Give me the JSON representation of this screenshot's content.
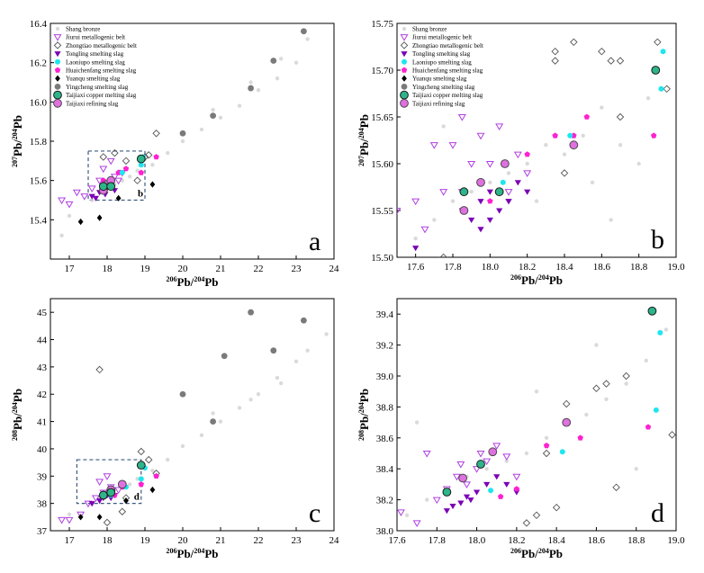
{
  "colors": {
    "bronze": "#d4d4d4",
    "jiurui": "#b040e0",
    "zhongtiao": "#555555",
    "tongling": "#7b00b5",
    "laoniupo": "#1ee6ee",
    "huaichenfang": "#ff20d0",
    "yuanqu": "#000000",
    "yingcheng": "#7a7a7a",
    "taijiaxi_copper": "#2db48a",
    "taijiaxi_refining": "#e070e0",
    "inset_box": "#3d5a80"
  },
  "legend": [
    {
      "key": "bronze",
      "label": "Shang bronze",
      "marker": "circle-filled"
    },
    {
      "key": "jiurui",
      "label": "Jiurui metallogenic belt",
      "marker": "triangle-down-open"
    },
    {
      "key": "zhongtiao",
      "label": "Zhongtiao metallogenic belt",
      "marker": "diamond-open"
    },
    {
      "key": "tongling",
      "label": "Tongling smelting slag",
      "marker": "triangle-down-filled"
    },
    {
      "key": "laoniupo",
      "label": "Laoniupo smelting slag",
      "marker": "circle-filled"
    },
    {
      "key": "huaichenfang",
      "label": "Huaichenfang smelting slag",
      "marker": "pentagon-filled"
    },
    {
      "key": "yuanqu",
      "label": "Yuanqu smelting slag",
      "marker": "diamond-filled"
    },
    {
      "key": "yingcheng",
      "label": "Yingcheng smelting slag",
      "marker": "circle-filled"
    },
    {
      "key": "taijiaxi_copper",
      "label": "Taijiaxi copper melting slag",
      "marker": "circle-outlined"
    },
    {
      "key": "taijiaxi_refining",
      "label": "Taijiaxi refining slag",
      "marker": "circle-outlined"
    }
  ],
  "chart_data": [
    {
      "panel": "a",
      "type": "scatter",
      "xlabel": "206Pb/204Pb",
      "ylabel": "207Pb/204Pb",
      "xlim": [
        16.5,
        24
      ],
      "ylim": [
        15.2,
        16.4
      ],
      "xticks": [
        "17",
        "18",
        "19",
        "20",
        "21",
        "22",
        "23",
        "24"
      ],
      "yticks": [
        "15.4",
        "15.6",
        "15.8",
        "16.0",
        "16.2",
        "16.4"
      ],
      "inset_box": {
        "label": "b",
        "x": [
          17.5,
          19.0
        ],
        "y": [
          15.5,
          15.75
        ]
      },
      "series": {
        "bronze": {
          "x": [
            17.6,
            17.8,
            18.0,
            18.2,
            18.4,
            18.6,
            18.8,
            19.2,
            19.6,
            20.0,
            20.5,
            21.0,
            21.5,
            22.0,
            22.5,
            23.0,
            23.3,
            20.8,
            21.8,
            22.6,
            17.0,
            16.8
          ],
          "y": [
            15.5,
            15.54,
            15.56,
            15.58,
            15.6,
            15.62,
            15.65,
            15.68,
            15.74,
            15.8,
            15.86,
            15.92,
            15.98,
            16.06,
            16.12,
            16.2,
            16.32,
            15.96,
            16.1,
            16.22,
            15.42,
            15.32
          ]
        },
        "jiurui": {
          "x": [
            16.8,
            17.0,
            17.2,
            17.4,
            17.6,
            17.8,
            18.0,
            18.2,
            18.4,
            17.9,
            18.1,
            18.3
          ],
          "y": [
            15.5,
            15.48,
            15.54,
            15.52,
            15.56,
            15.6,
            15.58,
            15.62,
            15.64,
            15.66,
            15.7,
            15.6
          ]
        },
        "zhongtiao": {
          "x": [
            17.9,
            18.2,
            18.5,
            19.0,
            19.1,
            19.3,
            18.8
          ],
          "y": [
            15.72,
            15.74,
            15.7,
            15.72,
            15.73,
            15.84,
            15.6
          ]
        },
        "tongling": {
          "x": [
            17.6,
            17.8,
            17.9,
            18.0,
            18.1,
            18.2,
            17.7,
            17.95
          ],
          "y": [
            15.52,
            15.54,
            15.55,
            15.56,
            15.57,
            15.55,
            15.51,
            15.53
          ]
        },
        "laoniupo": {
          "x": [
            18.4,
            18.9,
            18.95,
            18.1
          ],
          "y": [
            15.64,
            15.68,
            15.72,
            15.6
          ]
        },
        "huaichenfang": {
          "x": [
            17.9,
            18.3,
            18.5,
            18.9,
            19.3
          ],
          "y": [
            15.6,
            15.64,
            15.66,
            15.64,
            15.72
          ]
        },
        "yuanqu": {
          "x": [
            17.3,
            17.8,
            18.3,
            19.2
          ],
          "y": [
            15.39,
            15.41,
            15.51,
            15.58
          ]
        },
        "yingcheng": {
          "x": [
            20.0,
            20.8,
            21.8,
            22.4,
            23.2
          ],
          "y": [
            15.84,
            15.93,
            16.07,
            16.21,
            16.36
          ]
        },
        "taijiaxi_copper": {
          "x": [
            17.9,
            18.1,
            18.9
          ],
          "y": [
            15.57,
            15.57,
            15.71
          ]
        },
        "taijiaxi_refining": {
          "x": [
            17.9,
            18.0,
            18.1
          ],
          "y": [
            15.55,
            15.58,
            15.6
          ]
        }
      }
    },
    {
      "panel": "b",
      "type": "scatter",
      "xlabel": "206Pb/204Pb",
      "ylabel": "207Pb/204Pb",
      "xlim": [
        17.5,
        19.0
      ],
      "ylim": [
        15.5,
        15.75
      ],
      "xticks": [
        "17.6",
        "17.8",
        "18.0",
        "18.2",
        "18.4",
        "18.6",
        "18.8",
        "19.0"
      ],
      "yticks": [
        "15.50",
        "15.55",
        "15.60",
        "15.65",
        "15.70",
        "15.75"
      ],
      "series": {
        "bronze": {
          "x": [
            17.6,
            17.7,
            17.8,
            17.9,
            18.0,
            18.1,
            18.2,
            18.3,
            18.4,
            18.5,
            18.6,
            18.7,
            18.8,
            18.9,
            17.75,
            18.25,
            18.55,
            18.65,
            18.85
          ],
          "y": [
            15.52,
            15.54,
            15.56,
            15.57,
            15.58,
            15.59,
            15.6,
            15.62,
            15.61,
            15.63,
            15.66,
            15.62,
            15.6,
            15.7,
            15.64,
            15.56,
            15.58,
            15.54,
            15.67
          ]
        },
        "jiurui": {
          "x": [
            17.5,
            17.6,
            17.65,
            17.7,
            17.75,
            17.8,
            17.85,
            17.9,
            17.95,
            18.0,
            18.05,
            18.1,
            18.15,
            18.2,
            17.85,
            17.95
          ],
          "y": [
            15.55,
            15.56,
            15.53,
            15.62,
            15.57,
            15.62,
            15.65,
            15.6,
            15.58,
            15.6,
            15.64,
            15.57,
            15.61,
            15.59,
            15.57,
            15.63
          ]
        },
        "zhongtiao": {
          "x": [
            18.35,
            18.45,
            18.6,
            18.65,
            18.7,
            18.9,
            18.95,
            18.35,
            18.4,
            18.7,
            17.75
          ],
          "y": [
            15.72,
            15.73,
            15.72,
            15.71,
            15.71,
            15.73,
            15.68,
            15.71,
            15.59,
            15.65,
            15.5
          ]
        },
        "tongling": {
          "x": [
            17.6,
            17.85,
            17.9,
            17.95,
            18.0,
            18.05,
            18.1,
            18.15,
            18.2,
            17.95,
            18.0,
            18.05,
            18.1
          ],
          "y": [
            15.51,
            15.55,
            15.54,
            15.56,
            15.57,
            15.55,
            15.56,
            15.58,
            15.57,
            15.53,
            15.54,
            15.57,
            15.56
          ]
        },
        "laoniupo": {
          "x": [
            18.43,
            18.92,
            18.93,
            18.07
          ],
          "y": [
            15.63,
            15.68,
            15.72,
            15.58
          ]
        },
        "huaichenfang": {
          "x": [
            18.2,
            18.35,
            18.45,
            18.52,
            18.88,
            18.0
          ],
          "y": [
            15.61,
            15.63,
            15.63,
            15.65,
            15.63,
            15.56
          ]
        },
        "yuanqu": {
          "x": [],
          "y": []
        },
        "yingcheng": {
          "x": [],
          "y": []
        },
        "taijiaxi_copper": {
          "x": [
            17.86,
            18.05,
            18.89
          ],
          "y": [
            15.57,
            15.57,
            15.7
          ]
        },
        "taijiaxi_refining": {
          "x": [
            17.86,
            17.95,
            18.08,
            18.45
          ],
          "y": [
            15.55,
            15.58,
            15.6,
            15.62
          ]
        }
      }
    },
    {
      "panel": "c",
      "type": "scatter",
      "xlabel": "206Pb/204Pb",
      "ylabel": "208Pb/204Pb",
      "xlim": [
        16.5,
        24
      ],
      "ylim": [
        37,
        45.5
      ],
      "xticks": [
        "17",
        "18",
        "19",
        "20",
        "21",
        "22",
        "23",
        "24"
      ],
      "yticks": [
        "37",
        "38",
        "39",
        "40",
        "41",
        "42",
        "43",
        "44",
        "45"
      ],
      "inset_box": {
        "label": "d",
        "x": [
          17.2,
          18.9
        ],
        "y": [
          38.0,
          39.6
        ]
      },
      "series": {
        "bronze": {
          "x": [
            17.6,
            17.8,
            18.0,
            18.2,
            18.4,
            18.6,
            18.8,
            19.2,
            19.6,
            20.0,
            20.5,
            21.0,
            21.5,
            22.0,
            22.5,
            23.0,
            23.3,
            23.8,
            20.8,
            21.8,
            22.6,
            17.0
          ],
          "y": [
            38.0,
            38.2,
            38.4,
            38.5,
            38.6,
            38.7,
            38.9,
            39.2,
            39.6,
            40.1,
            40.5,
            41.0,
            41.5,
            42.0,
            42.6,
            43.2,
            43.6,
            44.2,
            41.3,
            41.8,
            42.4,
            37.6
          ]
        },
        "jiurui": {
          "x": [
            16.8,
            17.0,
            17.3,
            17.5,
            17.7,
            17.9,
            18.1,
            18.3,
            18.0,
            17.8
          ],
          "y": [
            37.4,
            37.4,
            37.6,
            38.0,
            38.2,
            38.4,
            38.6,
            38.5,
            39.0,
            38.8
          ]
        },
        "zhongtiao": {
          "x": [
            17.8,
            18.0,
            18.4,
            18.9,
            19.1,
            19.3,
            18.5
          ],
          "y": [
            42.9,
            37.3,
            37.7,
            39.9,
            39.6,
            39.1,
            38.2
          ]
        },
        "tongling": {
          "x": [
            17.6,
            17.8,
            17.9,
            18.0,
            18.1,
            18.2
          ],
          "y": [
            38.0,
            38.1,
            38.2,
            38.3,
            38.2,
            38.3
          ]
        },
        "laoniupo": {
          "x": [
            18.9,
            19.0,
            18.5,
            18.1
          ],
          "y": [
            38.9,
            39.3,
            38.6,
            38.3
          ]
        },
        "huaichenfang": {
          "x": [
            18.4,
            18.9,
            19.3,
            18.2
          ],
          "y": [
            38.6,
            38.7,
            39.0,
            38.3
          ]
        },
        "yuanqu": {
          "x": [
            17.3,
            17.8,
            18.5,
            19.2
          ],
          "y": [
            37.5,
            37.5,
            38.1,
            38.5
          ]
        },
        "yingcheng": {
          "x": [
            20.0,
            20.8,
            21.1,
            21.8,
            22.4,
            23.2
          ],
          "y": [
            42.0,
            41.0,
            43.4,
            45.0,
            43.6,
            44.7
          ]
        },
        "taijiaxi_copper": {
          "x": [
            17.9,
            18.1,
            18.9
          ],
          "y": [
            38.3,
            38.4,
            39.4
          ]
        },
        "taijiaxi_refining": {
          "x": [
            17.9,
            18.1,
            18.4
          ],
          "y": [
            38.3,
            38.5,
            38.7
          ]
        }
      }
    },
    {
      "panel": "d",
      "type": "scatter",
      "xlabel": "206Pb/204Pb",
      "ylabel": "208Pb/204Pb",
      "xlim": [
        17.6,
        19.0
      ],
      "ylim": [
        38.0,
        39.5
      ],
      "xticks": [
        "17.6",
        "17.8",
        "18.0",
        "18.2",
        "18.4",
        "18.6",
        "18.8",
        "19.0"
      ],
      "yticks": [
        "38.0",
        "38.2",
        "38.4",
        "38.6",
        "38.8",
        "39.0",
        "39.2",
        "39.4"
      ],
      "series": {
        "bronze": {
          "x": [
            17.65,
            17.75,
            17.85,
            17.95,
            18.05,
            18.15,
            18.25,
            18.35,
            18.45,
            18.55,
            18.65,
            18.75,
            18.85,
            18.95,
            17.7,
            18.3,
            18.6,
            18.8
          ],
          "y": [
            38.1,
            38.2,
            38.25,
            38.35,
            38.4,
            38.45,
            38.5,
            38.6,
            38.7,
            38.75,
            38.85,
            38.95,
            39.1,
            39.3,
            38.7,
            38.9,
            39.2,
            38.4
          ]
        },
        "jiurui": {
          "x": [
            17.62,
            17.7,
            17.8,
            17.85,
            17.9,
            17.95,
            18.0,
            18.05,
            18.1,
            18.15,
            18.2,
            17.75,
            17.92,
            18.02
          ],
          "y": [
            38.12,
            38.05,
            38.2,
            38.27,
            38.35,
            38.3,
            38.4,
            38.45,
            38.55,
            38.48,
            38.35,
            38.5,
            38.43,
            38.5
          ]
        },
        "zhongtiao": {
          "x": [
            18.25,
            18.35,
            18.45,
            18.6,
            18.65,
            18.75,
            18.7,
            18.98,
            18.4,
            18.3
          ],
          "y": [
            38.05,
            38.5,
            38.82,
            38.92,
            38.95,
            39.0,
            38.28,
            38.62,
            38.15,
            38.1
          ]
        },
        "tongling": {
          "x": [
            17.85,
            17.88,
            17.92,
            17.95,
            18.0,
            18.05,
            18.1,
            18.15,
            18.2,
            17.97
          ],
          "y": [
            38.13,
            38.16,
            38.18,
            38.22,
            38.25,
            38.3,
            38.35,
            38.3,
            38.25,
            38.2
          ]
        },
        "laoniupo": {
          "x": [
            18.07,
            18.43,
            18.9,
            18.92
          ],
          "y": [
            38.26,
            38.51,
            38.78,
            39.28
          ]
        },
        "huaichenfang": {
          "x": [
            18.12,
            18.2,
            18.35,
            18.52,
            18.86
          ],
          "y": [
            38.22,
            38.27,
            38.55,
            38.6,
            38.67
          ]
        },
        "yuanqu": {
          "x": [],
          "y": []
        },
        "yingcheng": {
          "x": [],
          "y": []
        },
        "taijiaxi_copper": {
          "x": [
            17.85,
            18.02,
            18.88
          ],
          "y": [
            38.25,
            38.43,
            39.42
          ]
        },
        "taijiaxi_refining": {
          "x": [
            17.93,
            18.08,
            18.45
          ],
          "y": [
            38.34,
            38.51,
            38.7
          ]
        }
      }
    }
  ]
}
